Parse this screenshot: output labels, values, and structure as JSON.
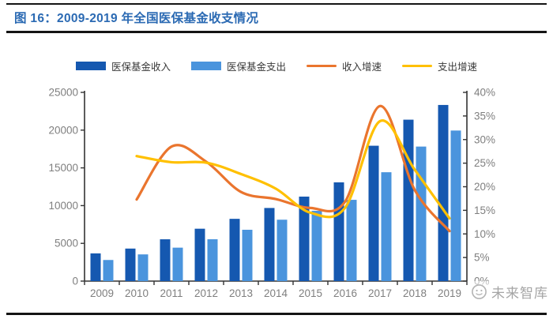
{
  "header": {
    "title": "图 16：2009-2019 年全国医保基金收支情况",
    "title_color": "#2b6ab3"
  },
  "legend": [
    {
      "label": "医保基金收入",
      "swatch": "bar",
      "color": "#1558b0"
    },
    {
      "label": "医保基金支出",
      "swatch": "bar",
      "color": "#4a94dd"
    },
    {
      "label": "收入增速",
      "swatch": "line",
      "color": "#ea752e"
    },
    {
      "label": "支出增速",
      "swatch": "line",
      "color": "#ffc000"
    }
  ],
  "chart_data": {
    "type": "bar",
    "subtype": "combo-bar-line",
    "categories": [
      "2009",
      "2010",
      "2011",
      "2012",
      "2013",
      "2014",
      "2015",
      "2016",
      "2017",
      "2018",
      "2019"
    ],
    "series": [
      {
        "name": "医保基金收入",
        "type": "bar",
        "axis": "left",
        "color": "#1558b0",
        "values": [
          3672,
          4309,
          5539,
          6939,
          8248,
          9687,
          11193,
          13084,
          17932,
          21384,
          23334
        ]
      },
      {
        "name": "医保基金支出",
        "type": "bar",
        "axis": "left",
        "color": "#4a94dd",
        "values": [
          2797,
          3538,
          4431,
          5544,
          6801,
          8134,
          9312,
          10767,
          14422,
          17822,
          19946
        ]
      },
      {
        "name": "收入增速",
        "type": "line",
        "axis": "right",
        "color": "#ea752e",
        "values": [
          null,
          17.3,
          28.5,
          25.3,
          18.9,
          17.4,
          15.5,
          16.9,
          37.1,
          19.3,
          10.6
        ]
      },
      {
        "name": "支出增速",
        "type": "line",
        "axis": "right",
        "color": "#ffc000",
        "values": [
          null,
          26.5,
          25.2,
          25.1,
          22.7,
          19.6,
          14.5,
          15.6,
          33.9,
          23.6,
          13.3
        ]
      }
    ],
    "left_axis": {
      "min": 0,
      "max": 25000,
      "step": 5000,
      "ticks": [
        "0",
        "5000",
        "10000",
        "15000",
        "20000",
        "25000"
      ]
    },
    "right_axis": {
      "min": 0,
      "max": 40,
      "step": 5,
      "ticks": [
        "0%",
        "5%",
        "10%",
        "15%",
        "20%",
        "25%",
        "30%",
        "35%",
        "40%"
      ]
    },
    "grid": false,
    "legend_position": "top",
    "axis_text_color": "#7f7f7f",
    "axis_line_color": "#333333"
  },
  "watermark": {
    "text": "未来智库"
  }
}
